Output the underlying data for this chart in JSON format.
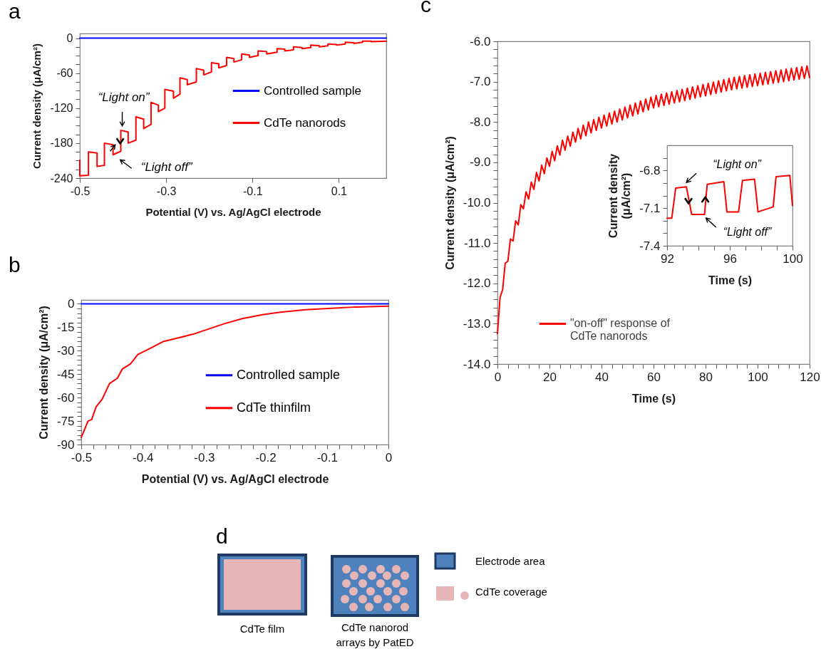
{
  "chart_data": [
    {
      "type": "line",
      "title": "a",
      "xlabel": "Potential (V) vs. Ag/AgCl electrode",
      "ylabel": "Current density (μA/cm²)",
      "xlim": [
        -0.5,
        0.21
      ],
      "ylim": [
        -240,
        8
      ],
      "xticks": [
        -0.5,
        -0.3,
        -0.1,
        0.1
      ],
      "yticks": [
        -240,
        {
          "value": -225,
          "label": null
        },
        {
          "value": -210,
          "label": null
        },
        {
          "value": -195,
          "label": null
        },
        -180,
        {
          "value": -165,
          "label": null
        },
        {
          "value": -150,
          "label": null
        },
        {
          "value": -135,
          "label": null
        },
        -120,
        {
          "value": -105,
          "label": null
        },
        {
          "value": -90,
          "label": null
        },
        {
          "value": -75,
          "label": null
        },
        -60,
        {
          "value": -45,
          "label": null
        },
        {
          "value": -30,
          "label": null
        },
        {
          "value": -15,
          "label": null
        },
        0
      ],
      "legend": "right",
      "annotations": [
        {
          "text": "“Light on”",
          "x": -0.405,
          "y": -158
        },
        {
          "text": "“Light off”",
          "x": -0.423,
          "y": -200
        }
      ],
      "series": [
        {
          "name": "Controlled sample",
          "color": "#0000ff",
          "x": [
            -0.5,
            0.21
          ],
          "values": [
            0,
            0
          ]
        },
        {
          "name": "CdTe nanorods",
          "color": "#ff0000",
          "x": [
            -0.5,
            -0.5,
            -0.48,
            -0.48,
            -0.46,
            -0.46,
            -0.443,
            -0.443,
            -0.423,
            -0.423,
            -0.405,
            -0.405,
            -0.388,
            -0.388,
            -0.37,
            -0.37,
            -0.352,
            -0.352,
            -0.335,
            -0.335,
            -0.318,
            -0.318,
            -0.303,
            -0.303,
            -0.283,
            -0.283,
            -0.268,
            -0.268,
            -0.251,
            -0.251,
            -0.23,
            -0.23,
            -0.213,
            -0.213,
            -0.195,
            -0.195,
            -0.178,
            -0.178,
            -0.16,
            -0.16,
            -0.143,
            -0.143,
            -0.125,
            -0.125,
            -0.107,
            -0.107,
            -0.087,
            -0.087,
            -0.067,
            -0.067,
            -0.043,
            -0.043,
            -0.025,
            -0.025,
            -0.005,
            -0.005,
            0.015,
            0.015,
            0.035,
            0.035,
            0.055,
            0.055,
            0.075,
            0.075,
            0.095,
            0.095,
            0.115,
            0.115,
            0.135,
            0.135,
            0.155,
            0.155,
            0.175,
            0.175,
            0.21
          ],
          "values": [
            -209,
            -236,
            -235,
            -195,
            -197,
            -220,
            -218,
            -180,
            -183,
            -200,
            -194,
            -158,
            -161,
            -180,
            -175,
            -135,
            -139,
            -155,
            -148,
            -110,
            -115,
            -126,
            -120,
            -88,
            -91,
            -103,
            -96,
            -68,
            -71,
            -80,
            -75,
            -52,
            -55,
            -63,
            -58,
            -42,
            -44,
            -51,
            -47,
            -33,
            -35,
            -41,
            -37,
            -27,
            -29,
            -33,
            -30,
            -22,
            -23,
            -27,
            -24,
            -18,
            -19,
            -22,
            -20,
            -15,
            -16,
            -18,
            -16,
            -12,
            -13,
            -15,
            -13,
            -10,
            -11,
            -12,
            -10,
            -7,
            -8,
            -9,
            -7,
            -5,
            -5,
            -6,
            -5
          ]
        }
      ]
    },
    {
      "type": "line",
      "title": "b",
      "xlabel": "Potential (V) vs. Ag/AgCl electrode",
      "ylabel": "Current density (μA/cm²)",
      "xlim": [
        -0.5,
        0
      ],
      "ylim": [
        -90,
        2.5
      ],
      "xticks": [
        -0.5,
        {
          "value": -0.48,
          "label": null
        },
        {
          "value": -0.46,
          "label": null
        },
        {
          "value": -0.44,
          "label": null
        },
        {
          "value": -0.42,
          "label": null
        },
        -0.4,
        {
          "value": -0.38,
          "label": null
        },
        {
          "value": -0.36,
          "label": null
        },
        {
          "value": -0.34,
          "label": null
        },
        {
          "value": -0.32,
          "label": null
        },
        -0.3,
        {
          "value": -0.28,
          "label": null
        },
        {
          "value": -0.26,
          "label": null
        },
        {
          "value": -0.24,
          "label": null
        },
        {
          "value": -0.22,
          "label": null
        },
        -0.2,
        {
          "value": -0.18,
          "label": null
        },
        {
          "value": -0.16,
          "label": null
        },
        {
          "value": -0.14,
          "label": null
        },
        {
          "value": -0.12,
          "label": null
        },
        -0.1,
        {
          "value": -0.08,
          "label": null
        },
        {
          "value": -0.06,
          "label": null
        },
        {
          "value": -0.04,
          "label": null
        },
        {
          "value": -0.02,
          "label": null
        },
        0
      ],
      "yticks": [
        -90,
        {
          "value": -87,
          "label": null
        },
        {
          "value": -84,
          "label": null
        },
        {
          "value": -81,
          "label": null
        },
        {
          "value": -78,
          "label": null
        },
        -75,
        {
          "value": -72,
          "label": null
        },
        {
          "value": -69,
          "label": null
        },
        {
          "value": -66,
          "label": null
        },
        {
          "value": -63,
          "label": null
        },
        -60,
        {
          "value": -57,
          "label": null
        },
        {
          "value": -54,
          "label": null
        },
        {
          "value": -51,
          "label": null
        },
        {
          "value": -48,
          "label": null
        },
        -45,
        {
          "value": -42,
          "label": null
        },
        {
          "value": -39,
          "label": null
        },
        {
          "value": -36,
          "label": null
        },
        {
          "value": -33,
          "label": null
        },
        -30,
        {
          "value": -27,
          "label": null
        },
        {
          "value": -24,
          "label": null
        },
        {
          "value": -21,
          "label": null
        },
        {
          "value": -18,
          "label": null
        },
        -15,
        {
          "value": -12,
          "label": null
        },
        {
          "value": -9,
          "label": null
        },
        {
          "value": -6,
          "label": null
        },
        {
          "value": -3,
          "label": null
        },
        0
      ],
      "legend": "right",
      "series": [
        {
          "name": "Controlled sample",
          "color": "#0000ff",
          "x": [
            -0.5,
            0
          ],
          "values": [
            0,
            0
          ]
        },
        {
          "name": "CdTe thinfilm",
          "color": "#ff0000",
          "x": [
            -0.5,
            -0.495,
            -0.489,
            -0.483,
            -0.476,
            -0.466,
            -0.454,
            -0.441,
            -0.433,
            -0.42,
            -0.408,
            -0.387,
            -0.367,
            -0.342,
            -0.317,
            -0.292,
            -0.267,
            -0.238,
            -0.205,
            -0.176,
            -0.135,
            -0.093,
            -0.052,
            0
          ],
          "values": [
            -85.5,
            -80.7,
            -75,
            -74,
            -66,
            -61,
            -51,
            -47.5,
            -41.6,
            -38.5,
            -32.4,
            -28.3,
            -24.2,
            -21.8,
            -19.3,
            -16,
            -12.7,
            -9.5,
            -7,
            -5.4,
            -3.8,
            -2.8,
            -2,
            -1.5
          ]
        }
      ]
    },
    {
      "type": "line",
      "title": "c",
      "xlabel": "Time (s)",
      "ylabel": "Current density (μA/cm²)",
      "xlim": [
        0,
        120
      ],
      "ylim": [
        -14,
        -6
      ],
      "xticks": [
        0,
        {
          "value": 4,
          "label": null
        },
        {
          "value": 8,
          "label": null
        },
        {
          "value": 12,
          "label": null
        },
        {
          "value": 16,
          "label": null
        },
        20,
        {
          "value": 24,
          "label": null
        },
        {
          "value": 28,
          "label": null
        },
        {
          "value": 32,
          "label": null
        },
        {
          "value": 36,
          "label": null
        },
        40,
        {
          "value": 44,
          "label": null
        },
        {
          "value": 48,
          "label": null
        },
        {
          "value": 52,
          "label": null
        },
        {
          "value": 56,
          "label": null
        },
        60,
        {
          "value": 64,
          "label": null
        },
        {
          "value": 68,
          "label": null
        },
        {
          "value": 72,
          "label": null
        },
        {
          "value": 76,
          "label": null
        },
        80,
        {
          "value": 84,
          "label": null
        },
        {
          "value": 88,
          "label": null
        },
        {
          "value": 92,
          "label": null
        },
        {
          "value": 96,
          "label": null
        },
        100,
        {
          "value": 104,
          "label": null
        },
        {
          "value": 108,
          "label": null
        },
        {
          "value": 112,
          "label": null
        },
        {
          "value": 116,
          "label": null
        },
        120
      ],
      "yticks": [
        {
          "value": -14,
          "label": "-14.0"
        },
        {
          "value": -13.8,
          "label": null
        },
        {
          "value": -13.6,
          "label": null
        },
        {
          "value": -13.4,
          "label": null
        },
        {
          "value": -13.2,
          "label": null
        },
        {
          "value": -13,
          "label": "-13.0"
        },
        {
          "value": -12.8,
          "label": null
        },
        {
          "value": -12.6,
          "label": null
        },
        {
          "value": -12.4,
          "label": null
        },
        {
          "value": -12.2,
          "label": null
        },
        {
          "value": -12,
          "label": "-12.0"
        },
        {
          "value": -11.8,
          "label": null
        },
        {
          "value": -11.6,
          "label": null
        },
        {
          "value": -11.4,
          "label": null
        },
        {
          "value": -11.2,
          "label": null
        },
        {
          "value": -11,
          "label": "-11.0"
        },
        {
          "value": -10.8,
          "label": null
        },
        {
          "value": -10.6,
          "label": null
        },
        {
          "value": -10.4,
          "label": null
        },
        {
          "value": -10.2,
          "label": null
        },
        {
          "value": -10,
          "label": "-10.0"
        },
        {
          "value": -9.8,
          "label": null
        },
        {
          "value": -9.6,
          "label": null
        },
        {
          "value": -9.4,
          "label": null
        },
        {
          "value": -9.2,
          "label": null
        },
        {
          "value": -9,
          "label": "-9.0"
        },
        {
          "value": -8.8,
          "label": null
        },
        {
          "value": -8.6,
          "label": null
        },
        {
          "value": -8.4,
          "label": null
        },
        {
          "value": -8.2,
          "label": null
        },
        {
          "value": -8,
          "label": "-8.0"
        },
        {
          "value": -7.8,
          "label": null
        },
        {
          "value": -7.6,
          "label": null
        },
        {
          "value": -7.4,
          "label": null
        },
        {
          "value": -7.2,
          "label": null
        },
        {
          "value": -7,
          "label": "-7.0"
        },
        {
          "value": -6.8,
          "label": null
        },
        {
          "value": -6.6,
          "label": null
        },
        {
          "value": -6.4,
          "label": null
        },
        {
          "value": -6.2,
          "label": null
        },
        {
          "value": -6,
          "label": "-6.0"
        }
      ],
      "legend": "bottom",
      "series": [
        {
          "name": "\"on-off\" response of CdTe nanorods",
          "color": "#ff0000",
          "x": [
            0,
            1,
            2,
            3,
            4,
            5,
            6,
            7,
            8,
            9,
            10,
            11,
            12,
            13,
            14,
            15,
            16,
            17,
            18,
            19,
            20,
            21,
            22,
            23,
            24,
            25,
            26,
            27,
            28,
            29,
            30,
            31,
            32,
            33,
            34,
            35,
            36,
            37,
            38,
            39,
            40,
            41,
            42,
            43,
            44,
            45,
            46,
            47,
            48,
            49,
            50,
            51,
            52,
            53,
            54,
            55,
            56,
            57,
            58,
            59,
            60,
            61,
            62,
            63,
            64,
            65,
            66,
            67,
            68,
            69,
            70,
            71,
            72,
            73,
            74,
            75,
            76,
            77,
            78,
            79,
            80,
            81,
            82,
            83,
            84,
            85,
            86,
            87,
            88,
            89,
            90,
            91,
            92,
            93,
            94,
            95,
            96,
            97,
            98,
            99,
            100,
            101,
            102,
            103,
            104,
            105,
            106,
            107,
            108,
            109,
            110,
            111,
            112,
            113,
            114,
            115,
            116,
            117,
            118,
            119,
            120
          ],
          "values": [
            -13.25,
            -12.35,
            -12.15,
            -11.5,
            -11.45,
            -10.9,
            -10.95,
            -10.45,
            -10.55,
            -10.05,
            -10.15,
            -9.73,
            -9.91,
            -9.49,
            -9.67,
            -9.25,
            -9.46,
            -9.07,
            -9.28,
            -8.89,
            -9.1,
            -8.73,
            -8.96,
            -8.59,
            -8.82,
            -8.45,
            -8.7,
            -8.35,
            -8.6,
            -8.25,
            -8.5,
            -8.16,
            -8.42,
            -8.08,
            -8.34,
            -8.0,
            -8.27,
            -7.94,
            -8.21,
            -7.88,
            -8.15,
            -7.83,
            -8.1,
            -7.78,
            -8.05,
            -7.73,
            -8.0,
            -7.68,
            -7.95,
            -7.63,
            -7.9,
            -7.58,
            -7.85,
            -7.53,
            -7.8,
            -7.48,
            -7.75,
            -7.43,
            -7.7,
            -7.38,
            -7.65,
            -7.34,
            -7.62,
            -7.31,
            -7.59,
            -7.28,
            -7.56,
            -7.25,
            -7.53,
            -7.22,
            -7.5,
            -7.19,
            -7.47,
            -7.16,
            -7.44,
            -7.13,
            -7.41,
            -7.1,
            -7.38,
            -7.07,
            -7.35,
            -7.04,
            -7.32,
            -7.01,
            -7.29,
            -6.98,
            -7.26,
            -6.95,
            -7.23,
            -6.92,
            -7.2,
            -6.89,
            -7.18,
            -6.87,
            -7.16,
            -6.85,
            -7.14,
            -6.83,
            -7.12,
            -6.81,
            -7.1,
            -6.79,
            -7.08,
            -6.77,
            -7.06,
            -6.75,
            -7.04,
            -6.73,
            -7.02,
            -6.71,
            -7.0,
            -6.69,
            -6.98,
            -6.67,
            -6.96,
            -6.65,
            -6.94,
            -6.63,
            -6.92,
            -6.61,
            -6.9
          ]
        }
      ]
    },
    {
      "type": "line",
      "xlabel": "Time (s)",
      "ylabel": "Current density (μA/cm²)",
      "xlim": [
        92,
        100
      ],
      "ylim": [
        -7.4,
        -6.6
      ],
      "xticks": [
        92,
        {
          "value": 93,
          "label": null
        },
        {
          "value": 94,
          "label": null
        },
        {
          "value": 95,
          "label": null
        },
        96,
        {
          "value": 97,
          "label": null
        },
        {
          "value": 98,
          "label": null
        },
        {
          "value": 99,
          "label": null
        },
        100
      ],
      "yticks": [
        -7.4,
        {
          "value": -7.3,
          "label": null
        },
        {
          "value": -7.2,
          "label": null
        },
        -7.1,
        {
          "value": -7,
          "label": null
        },
        {
          "value": -6.9,
          "label": null
        },
        -6.8,
        {
          "value": -6.7,
          "label": null
        }
      ],
      "annotations": [
        {
          "text": "“Light on”",
          "x": 93.23,
          "y": -6.93
        },
        {
          "text": "“Light off”",
          "x": 94.39,
          "y": -7.15
        }
      ],
      "series": [
        {
          "color": "#ff0000",
          "x": [
            92,
            92.3,
            92.55,
            93.23,
            93.57,
            93.66,
            94.39,
            94.56,
            95.62,
            95.82,
            96.56,
            96.81,
            97.58,
            97.8,
            98.77,
            98.95,
            99.83,
            100
          ],
          "values": [
            -7.18,
            -7.18,
            -6.94,
            -6.93,
            -7.15,
            -7.15,
            -7.15,
            -6.91,
            -6.89,
            -7.13,
            -7.13,
            -6.88,
            -6.87,
            -7.13,
            -7.09,
            -6.85,
            -6.84,
            -7.08
          ]
        }
      ]
    },
    {
      "type": "other",
      "title": "d",
      "annotations": [
        "CdTe film",
        "CdTe nanorod arrays by PatED",
        "Electrode area",
        "CdTe coverage"
      ]
    }
  ]
}
